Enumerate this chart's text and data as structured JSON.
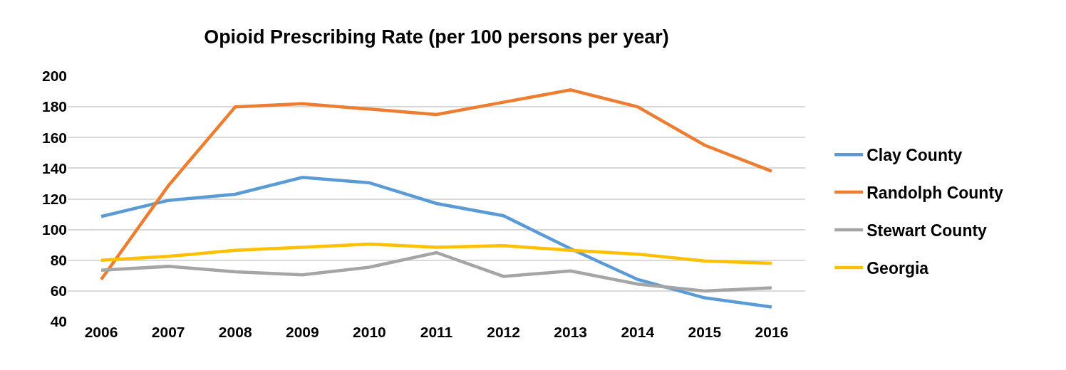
{
  "chart_data": {
    "type": "line",
    "title": "Opioid Prescribing Rate (per 100 persons per year)",
    "categories": [
      "2006",
      "2007",
      "2008",
      "2009",
      "2010",
      "2011",
      "2012",
      "2013",
      "2014",
      "2015",
      "2016"
    ],
    "series": [
      {
        "name": "Clay County",
        "color": "#5b9bd5",
        "values": [
          108.5,
          119,
          123,
          134,
          130.5,
          117,
          109,
          87.5,
          67.5,
          55.5,
          49.5
        ]
      },
      {
        "name": "Randolph County",
        "color": "#ed7d31",
        "values": [
          67.5,
          128.5,
          180,
          182,
          178.5,
          175,
          183,
          191,
          180,
          155,
          138
        ]
      },
      {
        "name": "Stewart County",
        "color": "#a5a5a5",
        "values": [
          73.5,
          76,
          72.5,
          70.5,
          75.5,
          85,
          69.5,
          73,
          64.5,
          60,
          62
        ]
      },
      {
        "name": "Georgia",
        "color": "#ffc000",
        "values": [
          80,
          82.5,
          86.5,
          88.5,
          90.5,
          88.5,
          89.5,
          86.5,
          84,
          79.5,
          78
        ]
      }
    ],
    "ylim": [
      40,
      200
    ],
    "yticks": [
      40,
      60,
      80,
      100,
      120,
      140,
      160,
      180,
      200
    ],
    "grid": "y",
    "legend": "right",
    "marker": "none",
    "line_style": "solid"
  }
}
